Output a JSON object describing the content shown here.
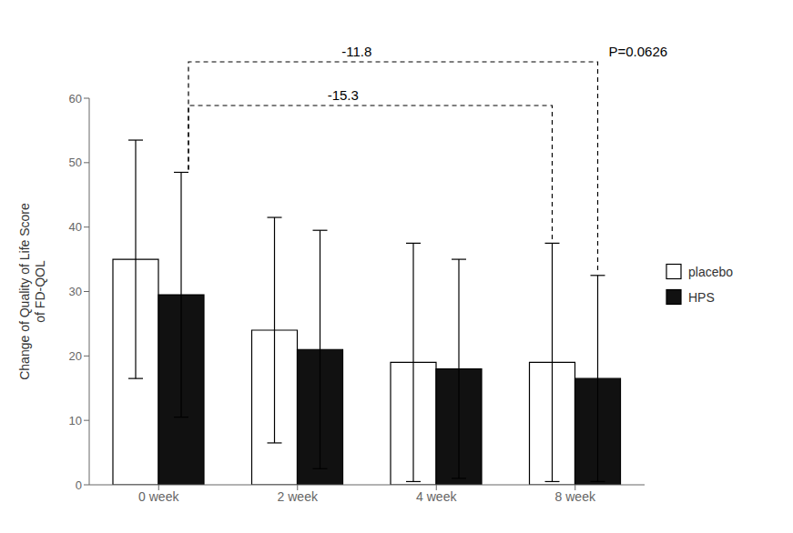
{
  "chart_data": {
    "type": "bar",
    "categories": [
      "0 week",
      "2 week",
      "4 week",
      "8 week"
    ],
    "series": [
      {
        "name": "placebo",
        "color": "#ffffff",
        "values": [
          35.0,
          24.0,
          19.0,
          19.0
        ],
        "errors": [
          18.5,
          17.5,
          18.5,
          18.5
        ]
      },
      {
        "name": "HPS",
        "color": "#111111",
        "values": [
          29.5,
          21.0,
          18.0,
          16.5
        ],
        "errors": [
          19.0,
          18.5,
          17.0,
          16.0
        ]
      }
    ],
    "ylabel": "Change of Quality of Life Score\nof FD-QOL",
    "ylim": [
      0,
      60
    ],
    "yticks": [
      0,
      10,
      20,
      30,
      40,
      50,
      60
    ],
    "grid": false,
    "legend": "right",
    "annotations": [
      "-11.8",
      "-15.3",
      "P=0.0626"
    ]
  }
}
